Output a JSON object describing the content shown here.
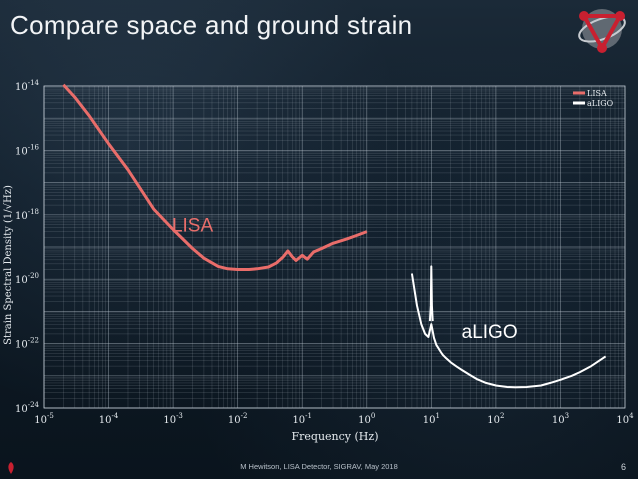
{
  "slide": {
    "title": "Compare space and ground strain",
    "footer": "M Hewitson, LISA Detector, SIGRAV, May 2018",
    "page_number": "6"
  },
  "colors": {
    "lisa": "#e96d6a",
    "aligo": "#ffffff"
  },
  "chart_data": {
    "type": "line",
    "title": "",
    "xlabel": "Frequency (Hz)",
    "ylabel": "Strain Spectral Density (1/√Hz)",
    "xscale": "log",
    "yscale": "log",
    "xlim": [
      1e-05,
      10000.0
    ],
    "ylim": [
      1e-24,
      1e-14
    ],
    "x_ticks": [
      {
        "value": 1e-05,
        "base": "10",
        "exp": "-5"
      },
      {
        "value": 0.0001,
        "base": "10",
        "exp": "-4"
      },
      {
        "value": 0.001,
        "base": "10",
        "exp": "-3"
      },
      {
        "value": 0.01,
        "base": "10",
        "exp": "-2"
      },
      {
        "value": 0.1,
        "base": "10",
        "exp": "-1"
      },
      {
        "value": 1.0,
        "base": "10",
        "exp": "0"
      },
      {
        "value": 10.0,
        "base": "10",
        "exp": "1"
      },
      {
        "value": 100.0,
        "base": "10",
        "exp": "2"
      },
      {
        "value": 1000.0,
        "base": "10",
        "exp": "3"
      },
      {
        "value": 10000.0,
        "base": "10",
        "exp": "4"
      }
    ],
    "y_ticks": [
      {
        "value": 1e-14,
        "base": "10",
        "exp": "-14"
      },
      {
        "value": 1e-16,
        "base": "10",
        "exp": "-16"
      },
      {
        "value": 1e-18,
        "base": "10",
        "exp": "-18"
      },
      {
        "value": 1e-20,
        "base": "10",
        "exp": "-20"
      },
      {
        "value": 1e-22,
        "base": "10",
        "exp": "-22"
      },
      {
        "value": 1e-24,
        "base": "10",
        "exp": "-24"
      }
    ],
    "grid": true,
    "legend_position": "top-right",
    "annotations": [
      {
        "text": "LISA",
        "x": 0.002,
        "y": 3e-19,
        "color": "#e96d6a"
      },
      {
        "text": "aLIGO",
        "x": 80,
        "y": 1.5e-22,
        "color": "#ffffff"
      }
    ],
    "series": [
      {
        "name": "LISA",
        "color": "#e96d6a",
        "x": [
          2e-05,
          3e-05,
          5e-05,
          0.0001,
          0.0002,
          0.0005,
          0.001,
          0.002,
          0.003,
          0.005,
          0.007,
          0.01,
          0.015,
          0.02,
          0.03,
          0.04,
          0.05,
          0.06,
          0.07,
          0.08,
          0.1,
          0.12,
          0.15,
          0.2,
          0.3,
          0.5,
          0.7,
          1.0
        ],
        "y": [
          1.1e-14,
          4.5e-15,
          1.2e-15,
          1.6e-16,
          2.5e-17,
          1.5e-18,
          3.5e-19,
          9e-20,
          4.5e-20,
          2.5e-20,
          2.1e-20,
          2e-20,
          2e-20,
          2.1e-20,
          2.4e-20,
          3.2e-20,
          4.8e-20,
          7.5e-20,
          5e-20,
          3.8e-20,
          5.5e-20,
          4.2e-20,
          7e-20,
          9e-20,
          1.3e-19,
          1.8e-19,
          2.3e-19,
          3e-19
        ]
      },
      {
        "name": "aLIGO",
        "color": "#ffffff",
        "segments": [
          {
            "x": [
              5,
              6,
              7,
              8,
              9,
              10,
              11,
              12,
              13,
              14,
              15,
              17,
              20,
              25,
              30,
              40,
              50,
              70,
              100,
              150,
              200,
              300,
              500,
              700,
              1000,
              1500,
              2000,
              3000,
              5000
            ],
            "y": [
              1.5e-20,
              1.5e-21,
              4e-22,
              2e-22,
              1.6e-22,
              4e-22,
              1.5e-22,
              9e-23,
              7e-23,
              5.5e-23,
              4.5e-23,
              3.5e-23,
              2.6e-23,
              1.9e-23,
              1.5e-23,
              1.05e-23,
              8e-24,
              6e-24,
              5e-24,
              4.5e-24,
              4.4e-24,
              4.5e-24,
              5e-24,
              6e-24,
              7.5e-24,
              1e-23,
              1.3e-23,
              2e-23,
              4e-23
            ]
          },
          {
            "x": [
              9.5,
              9.8,
              10,
              10.2,
              10.5
            ],
            "y": [
              5e-22,
              1.5e-21,
              2.5e-20,
              1.5e-21,
              5e-22
            ]
          }
        ]
      }
    ]
  }
}
